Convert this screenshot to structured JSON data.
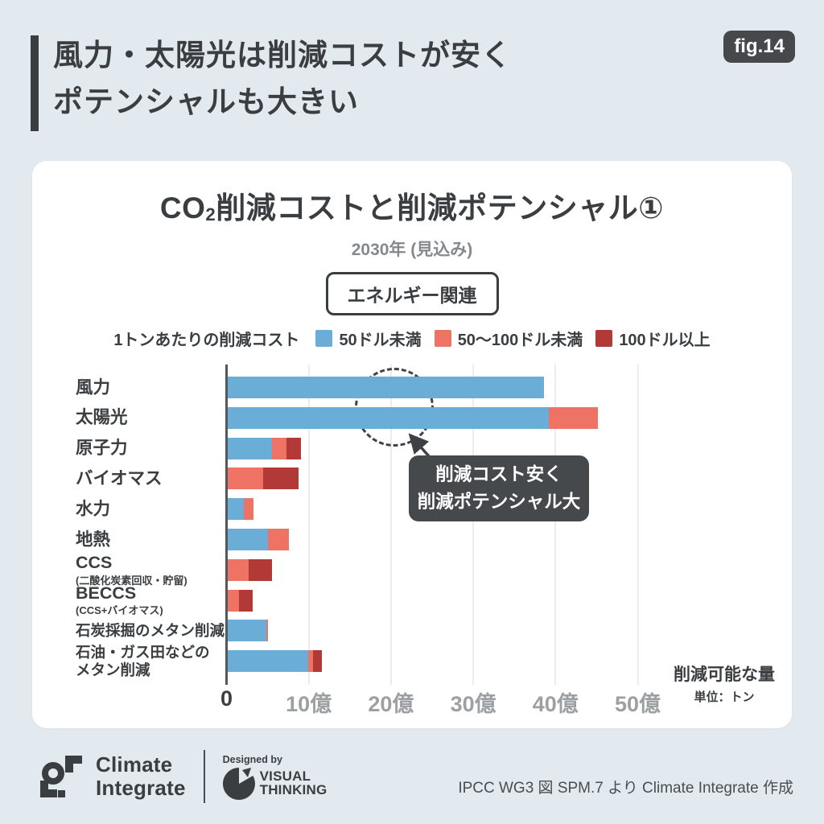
{
  "page": {
    "background": "#e3eaef"
  },
  "header": {
    "title_line1": "風力・太陽光は削減コストが安く",
    "title_line2": "ポテンシャルも大きい",
    "badge": "fig.14"
  },
  "card": {
    "title_parts": {
      "prefix": "CO",
      "sub": "2",
      "rest": "削減コストと削減ポテンシャル①"
    },
    "subtitle": "2030年 (見込み)",
    "category_tag": "エネルギー関連"
  },
  "chart_data": {
    "type": "bar",
    "orientation": "horizontal",
    "stacked": true,
    "title": "CO2削減コストと削減ポテンシャル①",
    "subtitle": "2030年 (見込み)",
    "tag": "エネルギー関連",
    "legend_title": "1トンあたりの削減コスト",
    "legend_position": "top",
    "grid": true,
    "unit": "億トン",
    "categories": [
      {
        "label": "風力"
      },
      {
        "label": "太陽光"
      },
      {
        "label": "原子力"
      },
      {
        "label": "バイオマス"
      },
      {
        "label": "水力"
      },
      {
        "label": "地熱"
      },
      {
        "label": "CCS",
        "sublabel": "(二酸化炭素回収・貯留)"
      },
      {
        "label": "BECCS",
        "sublabel": "(CCS+バイオマス)"
      },
      {
        "label": "石炭採掘のメタン削減",
        "small": true
      },
      {
        "label": "石油・ガス田などの",
        "label2": "メタン削減",
        "small": true
      }
    ],
    "series": [
      {
        "name": "50ドル未満",
        "color": "#6aaed8",
        "values": [
          38.5,
          39,
          5.4,
          0,
          2.0,
          4.9,
          0,
          0,
          4.7,
          9.8
        ]
      },
      {
        "name": "50〜100ドル未満",
        "color": "#ee7365",
        "values": [
          0,
          6,
          1.7,
          4.3,
          1.1,
          2.5,
          2.5,
          1.4,
          0.2,
          0.6
        ]
      },
      {
        "name": "100ドル以上",
        "color": "#b13a37",
        "values": [
          0,
          0,
          1.8,
          4.3,
          0,
          0,
          2.9,
          1.6,
          0,
          1.0
        ]
      }
    ],
    "x_ticks": [
      "0",
      "10億",
      "20億",
      "30億",
      "40億",
      "50億"
    ],
    "xlim": [
      0,
      50
    ],
    "xlabel": "削減可能な量",
    "xlabel_unit": "単位：トン",
    "annotation": {
      "line1": "削減コスト安く",
      "line2": "削減ポテンシャル大"
    }
  },
  "footer": {
    "logo_line1": "Climate",
    "logo_line2": "Integrate",
    "designed_by": "Designed by",
    "visual_line1": "VISUAL",
    "visual_line2": "THINKING",
    "credit": "IPCC WG3 図 SPM.7 より Climate Integrate 作成"
  },
  "colors": {
    "blue": "#6aaed8",
    "salmon": "#ee7365",
    "dark_red": "#b13a37",
    "accent_dark": "#3b3e40",
    "callout_bg": "#46494c"
  }
}
